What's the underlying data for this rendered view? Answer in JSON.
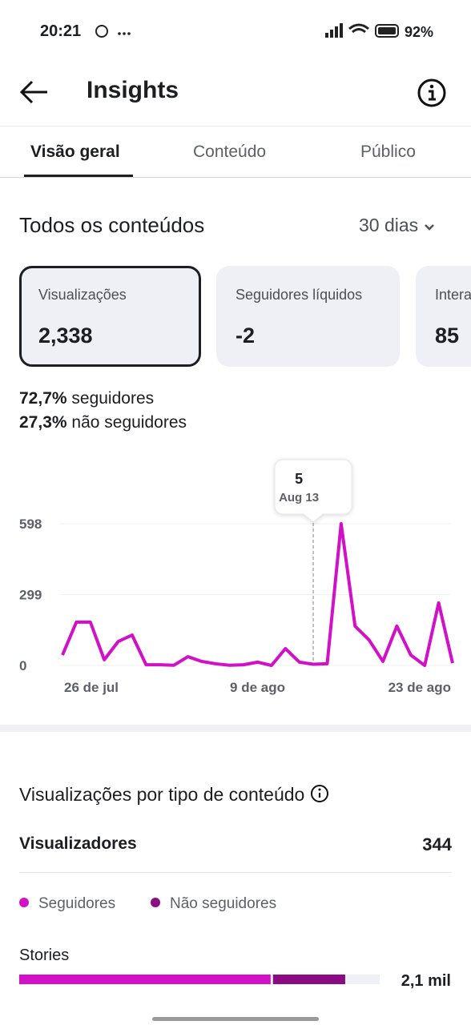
{
  "status_bar": {
    "time": "20:21",
    "battery": "92%"
  },
  "header": {
    "title": "Insights"
  },
  "tabs": [
    "Visão geral",
    "Conteúdo",
    "Público"
  ],
  "section": {
    "title": "Todos os conteúdos",
    "period": "30 dias"
  },
  "cards": [
    {
      "label": "Visualizações",
      "value": "2,338"
    },
    {
      "label": "Seguidores líquidos",
      "value": "-2"
    },
    {
      "label": "Interações",
      "value": "85"
    }
  ],
  "audience": [
    {
      "percent": "72,7%",
      "label": "seguidores"
    },
    {
      "percent": "27,3%",
      "label": "não seguidores"
    }
  ],
  "chart_data": [
    {
      "type": "line",
      "categories": [
        "26 de jul",
        null,
        null,
        null,
        null,
        null,
        null,
        null,
        null,
        null,
        null,
        null,
        null,
        null,
        "9 de ago",
        null,
        null,
        null,
        null,
        null,
        null,
        null,
        null,
        null,
        null,
        null,
        null,
        null,
        "23 de ago"
      ],
      "values": [
        44,
        183,
        183,
        24,
        101,
        128,
        3,
        3,
        1,
        37,
        17,
        7,
        1,
        3,
        14,
        0,
        71,
        14,
        5,
        7,
        598,
        166,
        108,
        17,
        166,
        44,
        0,
        264,
        10
      ],
      "color": "#d210c8",
      "ylim": [
        0,
        598
      ],
      "yticks": [
        0,
        299,
        598
      ],
      "grid": true,
      "tooltip_label": "Aug 13"
    },
    {
      "type": "stacked-bar",
      "categories": [
        "Stories"
      ],
      "xlim": [
        0,
        100
      ],
      "series": [
        {
          "name": "Seguidores",
          "color": "#d210c8",
          "values": [
            70.4
          ]
        },
        {
          "name": "Não seguidores",
          "color": "#8a0b84",
          "values": [
            20.7
          ]
        }
      ],
      "total_labels": [
        "2,1 mil"
      ]
    }
  ],
  "content_type": {
    "title": "Visualizações por tipo de conteúdo",
    "viewers_label": "Visualizadores",
    "viewers_value": "344"
  }
}
